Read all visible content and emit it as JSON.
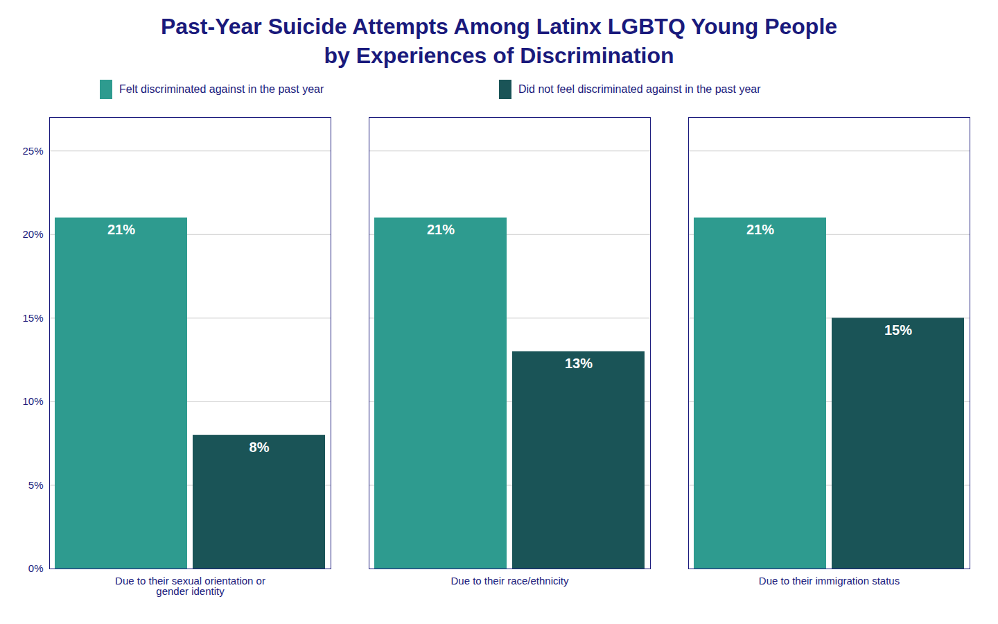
{
  "chart_data": {
    "type": "bar",
    "title": "Past-Year Suicide Attempts Among Latinx LGBTQ Young People",
    "subtitle": "by Experiences of Discrimination",
    "categories": [
      "Due to their sexual orientation or\ngender identity",
      "Due to their race/ethnicity",
      "Due to their immigration status"
    ],
    "series": [
      {
        "name": "Felt discriminated against in the past year",
        "color": "#2e9b8f",
        "values": [
          21,
          21,
          21
        ],
        "value_labels": [
          "21%",
          "21%",
          "21%"
        ]
      },
      {
        "name": "Did not feel discriminated against in the past year",
        "color": "#1a5457",
        "values": [
          8,
          13,
          15
        ],
        "value_labels": [
          "8%",
          "13%",
          "15%"
        ]
      }
    ],
    "ylim": [
      0,
      27
    ],
    "yticks": [
      {
        "value": 0,
        "label": "0%"
      },
      {
        "value": 5,
        "label": "5%"
      },
      {
        "value": 10,
        "label": "10%"
      },
      {
        "value": 15,
        "label": "15%"
      },
      {
        "value": 20,
        "label": "20%"
      },
      {
        "value": 25,
        "label": "25%"
      }
    ],
    "grid": true,
    "legend": "top",
    "data_labels": true
  }
}
